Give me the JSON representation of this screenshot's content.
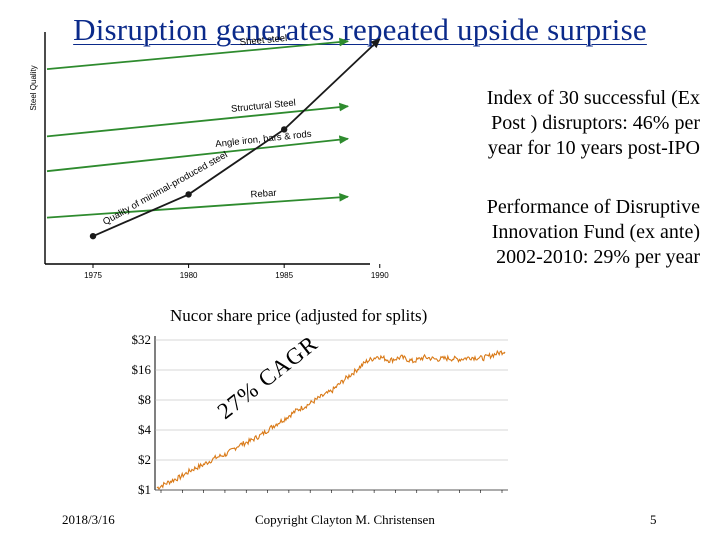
{
  "slide": {
    "title": "Disruption generates repeated upside surprise",
    "date": "2018/3/16",
    "copyright": "Copyright Clayton M. Christensen",
    "page_number": "5"
  },
  "notes": {
    "ex_post_lines": [
      "Index of 30 successful (Ex",
      "Post ) disruptors: 46% per",
      "year for 10 years post-IPO"
    ],
    "fund_lines": [
      "Performance of Disruptive",
      "Innovation Fund  (ex ante)",
      "2002-2010: 29% per year"
    ]
  },
  "colors": {
    "title": "#0b2a8a",
    "trajectory_line": "#1a1a1a",
    "tier_arrows": "#2e8b2e",
    "price_line": "#d97a18",
    "gridline": "#b0b0b0"
  },
  "chart_data": [
    {
      "type": "line",
      "ylabel": "Steel Quality",
      "x_ticks": [
        "1975",
        "1980",
        "1985",
        "1990"
      ],
      "trajectory_label": "Quality of minimal-produced steel",
      "trajectory_words": [
        "Quality",
        "of",
        "minimal-produced",
        "steel"
      ],
      "trajectory": [
        {
          "year": 1975,
          "quality": 0.12
        },
        {
          "year": 1980,
          "quality": 0.3
        },
        {
          "year": 1985,
          "quality": 0.58
        },
        {
          "year": 1990,
          "quality": 0.97
        }
      ],
      "tiers": [
        {
          "name": "Sheet steel",
          "quality": [
            0.84,
            0.96
          ]
        },
        {
          "name": "Structural Steel",
          "quality": [
            0.55,
            0.68
          ]
        },
        {
          "name": "Angle iron, bars & rods",
          "quality": [
            0.4,
            0.54
          ]
        },
        {
          "name": "Rebar",
          "quality": [
            0.2,
            0.29
          ]
        }
      ],
      "xlim": [
        1975,
        1992
      ]
    },
    {
      "type": "line",
      "title": "Nucor share price (adjusted for splits)",
      "y_scale": "log2",
      "y_ticks": [
        "$32",
        "$16",
        "$8",
        "$4",
        "$2",
        "$1"
      ],
      "ylim": [
        1,
        32
      ],
      "annotation": "27% CAGR",
      "series": [
        {
          "values": [
            1.05,
            1.2,
            1.35,
            1.6,
            1.8,
            2.1,
            2.3,
            2.8,
            3.1,
            3.6,
            4.4,
            5.2,
            6.3,
            7.2,
            8.5,
            9.8,
            12.5,
            15.5,
            19.5,
            22.0,
            20.0,
            21.5,
            19.5,
            21.5,
            20.5,
            21.0,
            20.5,
            21.5,
            21.0,
            23.0,
            25.0
          ]
        }
      ]
    }
  ]
}
